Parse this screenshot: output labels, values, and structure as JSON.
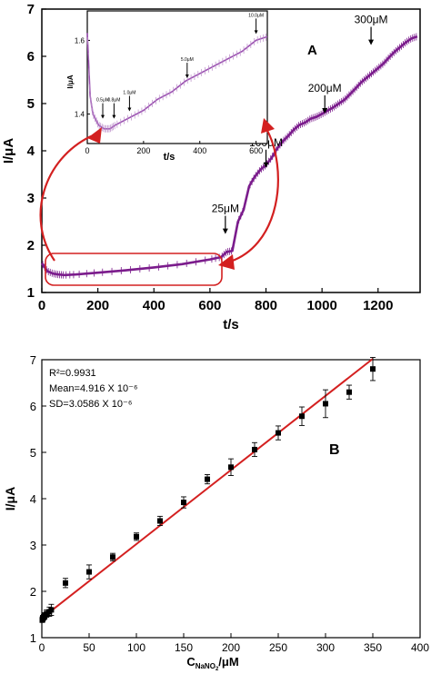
{
  "chart_data": [
    {
      "type": "line",
      "panel_label": "A",
      "xlabel": "t/s",
      "ylabel": "I/μA",
      "xlim": [
        0,
        1350
      ],
      "ylim": [
        1,
        7
      ],
      "xticks": [
        0,
        200,
        400,
        600,
        800,
        1000,
        1200
      ],
      "yticks": [
        1,
        2,
        3,
        4,
        5,
        6,
        7
      ],
      "series": [
        {
          "color": "#7b1c8c",
          "x": [
            0,
            20,
            40,
            60,
            80,
            120,
            200,
            300,
            400,
            500,
            600,
            640,
            660,
            680,
            700,
            720,
            740,
            760,
            780,
            800,
            820,
            840,
            860,
            880,
            900,
            920,
            940,
            960,
            980,
            1000,
            1020,
            1040,
            1060,
            1080,
            1100,
            1120,
            1140,
            1160,
            1180,
            1200,
            1220,
            1240,
            1260,
            1280,
            1300,
            1320,
            1340
          ],
          "y": [
            1.62,
            1.45,
            1.4,
            1.38,
            1.37,
            1.38,
            1.42,
            1.47,
            1.53,
            1.6,
            1.7,
            1.75,
            1.86,
            1.88,
            2.5,
            2.75,
            3.25,
            3.45,
            3.6,
            3.7,
            3.85,
            4.05,
            4.2,
            4.32,
            4.45,
            4.55,
            4.6,
            4.68,
            4.72,
            4.78,
            4.85,
            4.92,
            5.0,
            5.08,
            5.2,
            5.32,
            5.45,
            5.55,
            5.65,
            5.75,
            5.85,
            5.98,
            6.1,
            6.2,
            6.3,
            6.38,
            6.42
          ]
        }
      ],
      "annotations": [
        {
          "text": "25μM",
          "x": 655,
          "y": 2.2
        },
        {
          "text": "100μM",
          "x": 800,
          "y": 3.6
        },
        {
          "text": "200μM",
          "x": 1010,
          "y": 4.75
        },
        {
          "text": "300μM",
          "x": 1175,
          "y": 6.2
        }
      ],
      "inset": {
        "xlabel": "t/s",
        "ylabel": "I/μA",
        "xlim": [
          0,
          640
        ],
        "ylim": [
          1.32,
          1.68
        ],
        "xticks": [
          0,
          200,
          400,
          600
        ],
        "yticks": [
          1.4,
          1.6
        ],
        "x": [
          0,
          10,
          20,
          40,
          60,
          80,
          100,
          150,
          200,
          250,
          300,
          350,
          400,
          450,
          500,
          550,
          600,
          640
        ],
        "y": [
          1.62,
          1.45,
          1.4,
          1.37,
          1.36,
          1.36,
          1.37,
          1.39,
          1.41,
          1.44,
          1.46,
          1.49,
          1.51,
          1.53,
          1.55,
          1.57,
          1.6,
          1.61
        ],
        "annotations": [
          {
            "text": "0.5μM",
            "x": 55,
            "y": 1.38
          },
          {
            "text": "0.8μM",
            "x": 95,
            "y": 1.38
          },
          {
            "text": "1.0μM",
            "x": 150,
            "y": 1.4
          },
          {
            "text": "5.0μM",
            "x": 355,
            "y": 1.49
          },
          {
            "text": "10.0μM",
            "x": 600,
            "y": 1.61
          }
        ]
      }
    },
    {
      "type": "scatter",
      "panel_label": "B",
      "xlabel": "C",
      "xlabel_sub": "NaNO",
      "xlabel_subsub": "2",
      "xlabel_unit": "/μM",
      "ylabel": "I/μA",
      "xlim": [
        0,
        400
      ],
      "ylim": [
        1,
        7
      ],
      "xticks": [
        0,
        50,
        100,
        150,
        200,
        250,
        300,
        350,
        400
      ],
      "yticks": [
        1,
        2,
        3,
        4,
        5,
        6,
        7
      ],
      "stats": {
        "r2": "R²=0.9931",
        "mean": "Mean=4.916 X 10⁻⁶",
        "sd": "SD=3.0586 X 10⁻⁶"
      },
      "points": {
        "x": [
          0.5,
          0.8,
          1,
          2,
          3,
          5,
          8,
          10,
          25,
          50,
          75,
          100,
          125,
          150,
          175,
          200,
          225,
          250,
          275,
          300,
          325,
          350
        ],
        "y": [
          1.38,
          1.4,
          1.42,
          1.44,
          1.47,
          1.52,
          1.56,
          1.6,
          2.18,
          2.42,
          2.74,
          3.18,
          3.52,
          3.92,
          4.42,
          4.68,
          5.06,
          5.42,
          5.78,
          6.05,
          6.3,
          6.8
        ],
        "err": [
          0.05,
          0.05,
          0.06,
          0.06,
          0.07,
          0.08,
          0.1,
          0.12,
          0.1,
          0.15,
          0.08,
          0.08,
          0.1,
          0.12,
          0.1,
          0.18,
          0.15,
          0.15,
          0.2,
          0.3,
          0.15,
          0.25
        ]
      },
      "fit": {
        "x": [
          0,
          350
        ],
        "y": [
          1.42,
          7.02
        ],
        "color": "#d42020"
      }
    }
  ]
}
